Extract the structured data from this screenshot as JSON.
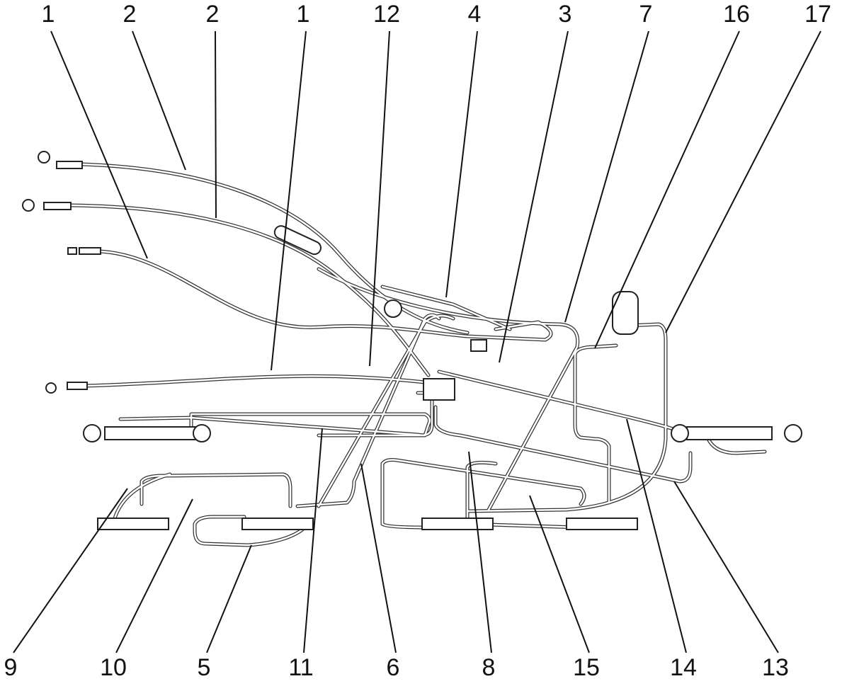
{
  "top_callouts": [
    "1",
    "2",
    "2",
    "1",
    "12",
    "4",
    "3",
    "7",
    "16",
    "17"
  ],
  "bottom_callouts": [
    "9",
    "10",
    "5",
    "11",
    "6",
    "8",
    "15",
    "14",
    "13"
  ]
}
